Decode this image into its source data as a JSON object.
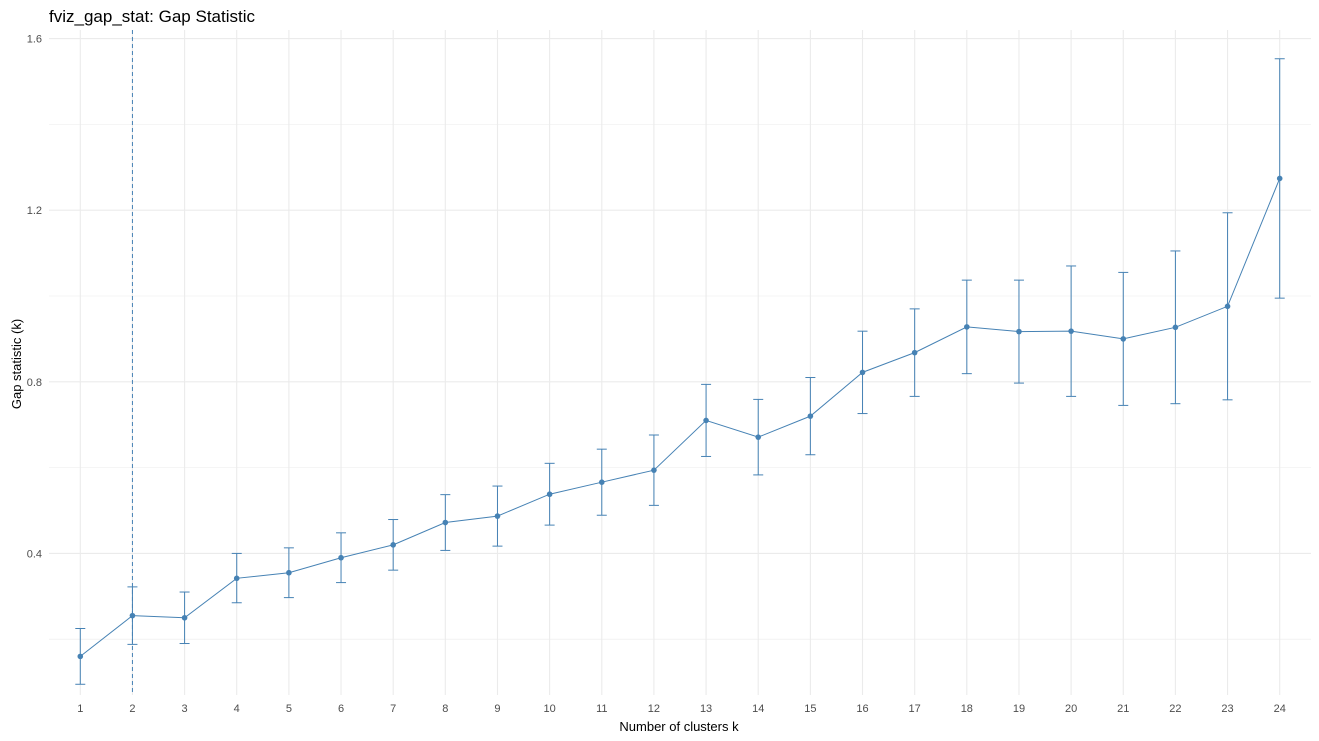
{
  "chart_data": {
    "type": "line",
    "title": "fviz_gap_stat: Gap Statistic",
    "xlabel": "Number of clusters k",
    "ylabel": "Gap statistic (k)",
    "x": [
      1,
      2,
      3,
      4,
      5,
      6,
      7,
      8,
      9,
      10,
      11,
      12,
      13,
      14,
      15,
      16,
      17,
      18,
      19,
      20,
      21,
      22,
      23,
      24
    ],
    "y": [
      0.16,
      0.255,
      0.25,
      0.342,
      0.355,
      0.39,
      0.42,
      0.472,
      0.487,
      0.538,
      0.566,
      0.594,
      0.71,
      0.671,
      0.72,
      0.822,
      0.868,
      0.928,
      0.917,
      0.918,
      0.9,
      0.927,
      0.976,
      1.274
    ],
    "ymin": [
      0.095,
      0.188,
      0.19,
      0.285,
      0.297,
      0.332,
      0.361,
      0.407,
      0.417,
      0.466,
      0.489,
      0.512,
      0.626,
      0.583,
      0.63,
      0.726,
      0.766,
      0.819,
      0.797,
      0.766,
      0.745,
      0.749,
      0.758,
      0.995
    ],
    "ymax": [
      0.225,
      0.322,
      0.31,
      0.4,
      0.413,
      0.448,
      0.479,
      0.537,
      0.557,
      0.61,
      0.643,
      0.676,
      0.794,
      0.759,
      0.81,
      0.918,
      0.97,
      1.037,
      1.037,
      1.07,
      1.055,
      1.105,
      1.194,
      1.553
    ],
    "optimal_k": 2,
    "ylim": [
      0.07,
      1.62
    ],
    "yticks": [
      "0.4",
      "0.8",
      "1.2",
      "1.6"
    ],
    "xticks": [
      "1",
      "2",
      "3",
      "4",
      "5",
      "6",
      "7",
      "8",
      "9",
      "10",
      "11",
      "12",
      "13",
      "14",
      "15",
      "16",
      "17",
      "18",
      "19",
      "20",
      "21",
      "22",
      "23",
      "24"
    ],
    "grid": true,
    "line_color": "#4682B4",
    "vline_color": "#4682B4",
    "grid_color": "#EBEBEB"
  }
}
